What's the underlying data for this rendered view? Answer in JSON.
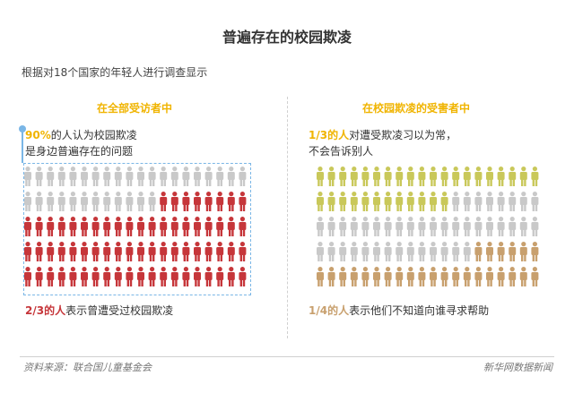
{
  "title": "普遍存在的校园欺凌",
  "subtitle": "根据对18个国家的年轻人进行调查显示",
  "left_section": {
    "heading": "在全部受访者中",
    "desc_highlight": "90%",
    "desc_line1_rest": "的人认为校园欺凌",
    "desc_line2": "是身边普遍存在的问题",
    "tag_highlight": "2/3的人",
    "tag_rest": "表示曾遭受过校园欺凌"
  },
  "right_section": {
    "heading": "在校园欺凌的受害者中",
    "desc_highlight": "1/3的人",
    "desc_line1_rest": "对遭受欺凌习以为常，",
    "desc_line2": "不会告诉别人",
    "tag_highlight": "1/4的人",
    "tag_rest": "表示他们不知道向谁寻求帮助"
  },
  "footer": {
    "source": "资料来源：联合国儿童基金会",
    "brand": "新华网数据新闻"
  },
  "colors": {
    "gray": "#c9c9c9",
    "red": "#c6363a",
    "olive": "#c9c85a",
    "tan": "#c8a06e",
    "accent": "#f0b400"
  },
  "icon_grids": {
    "left": {
      "rows": [
        {
          "gray": 20,
          "red": 0
        },
        {
          "gray": 12,
          "red": 8
        },
        {
          "gray": 0,
          "red": 20
        },
        {
          "gray": 0,
          "red": 20
        },
        {
          "gray": 0,
          "red": 20
        }
      ]
    },
    "right": {
      "rows": [
        {
          "olive": 20,
          "gray": 0,
          "tan": 0
        },
        {
          "olive": 12,
          "gray": 8,
          "tan": 0
        },
        {
          "olive": 0,
          "gray": 20,
          "tan": 0
        },
        {
          "olive": 0,
          "gray": 14,
          "tan": 6
        },
        {
          "olive": 0,
          "gray": 0,
          "tan": 20
        }
      ]
    }
  }
}
